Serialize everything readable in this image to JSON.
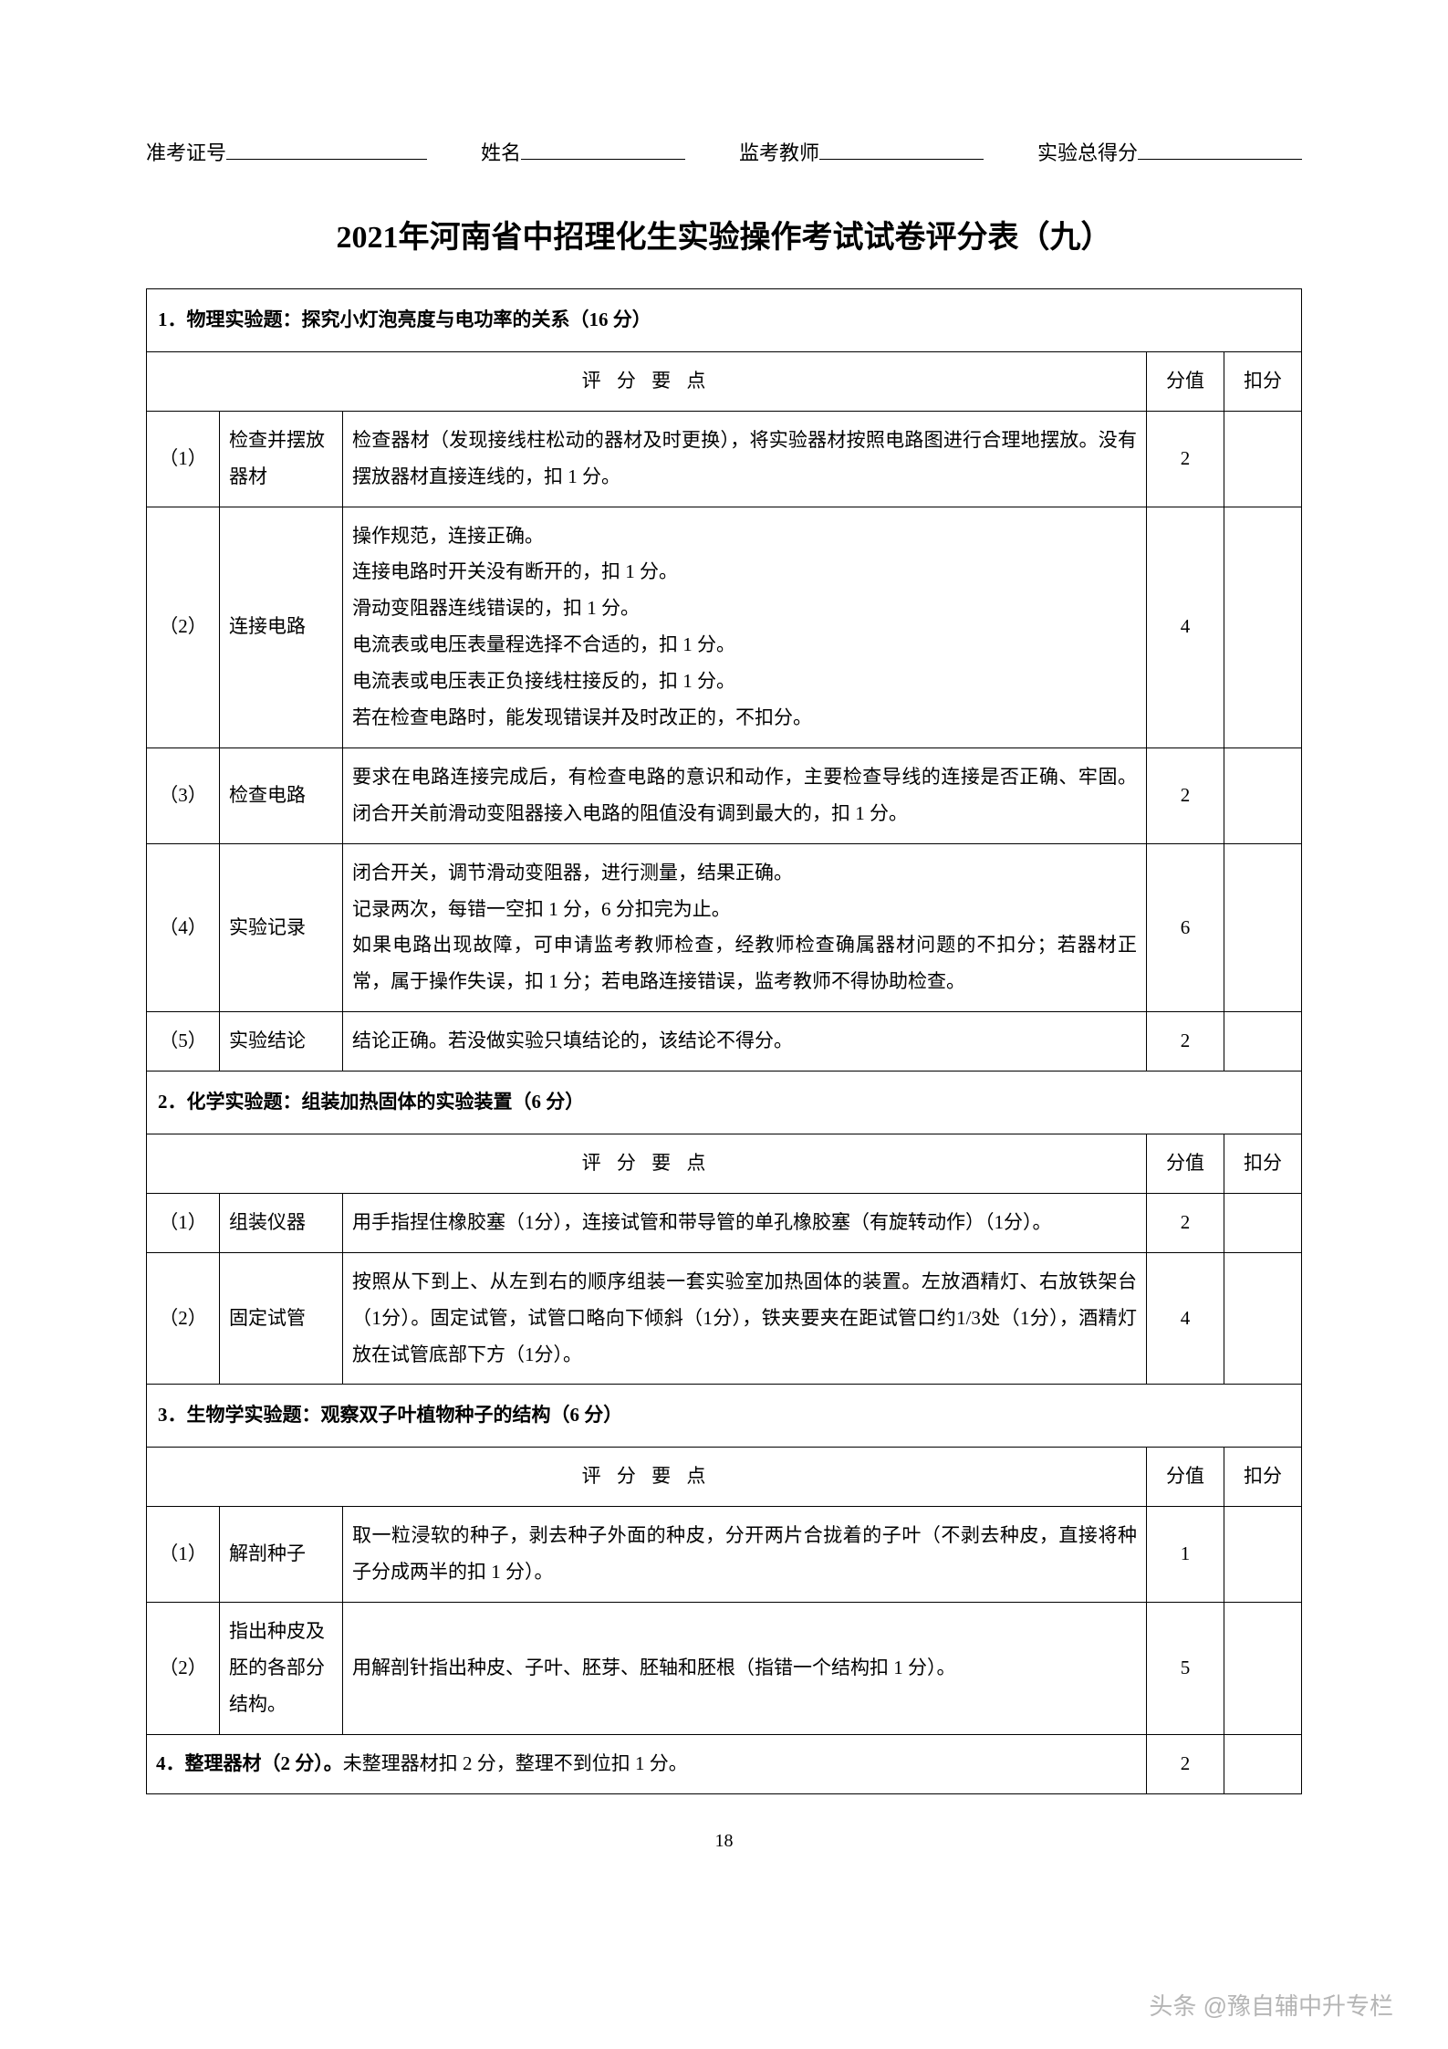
{
  "header": {
    "field1_label": "准考证号",
    "field2_label": "姓名",
    "field3_label": "监考教师",
    "field4_label": "实验总得分"
  },
  "title": "2021年河南省中招理化生实验操作考试试卷评分表（九）",
  "col_headers": {
    "criteria": "评 分 要 点",
    "score": "分值",
    "deduct": "扣分"
  },
  "section1": {
    "header": "1．物理实验题：探究小灯泡亮度与电功率的关系（16 分）",
    "rows": [
      {
        "num": "（1）",
        "name": "检查并摆放器材",
        "desc": "检查器材（发现接线柱松动的器材及时更换），将实验器材按照电路图进行合理地摆放。没有摆放器材直接连线的，扣 1 分。",
        "score": "2"
      },
      {
        "num": "（2）",
        "name": "连接电路",
        "desc": "操作规范，连接正确。\n连接电路时开关没有断开的，扣 1 分。\n滑动变阻器连线错误的，扣 1 分。\n电流表或电压表量程选择不合适的，扣 1 分。\n电流表或电压表正负接线柱接反的，扣 1 分。\n若在检查电路时，能发现错误并及时改正的，不扣分。",
        "score": "4"
      },
      {
        "num": "（3）",
        "name": "检查电路",
        "desc": "要求在电路连接完成后，有检查电路的意识和动作，主要检查导线的连接是否正确、牢固。闭合开关前滑动变阻器接入电路的阻值没有调到最大的，扣 1 分。",
        "score": "2"
      },
      {
        "num": "（4）",
        "name": "实验记录",
        "desc": "闭合开关，调节滑动变阻器，进行测量，结果正确。\n记录两次，每错一空扣 1 分，6 分扣完为止。\n如果电路出现故障，可申请监考教师检查，经教师检查确属器材问题的不扣分；若器材正常，属于操作失误，扣 1 分；若电路连接错误，监考教师不得协助检查。",
        "score": "6"
      },
      {
        "num": "（5）",
        "name": "实验结论",
        "desc": "结论正确。若没做实验只填结论的，该结论不得分。",
        "score": "2"
      }
    ]
  },
  "section2": {
    "header": "2．化学实验题：组装加热固体的实验装置（6 分）",
    "rows": [
      {
        "num": "（1）",
        "name": "组装仪器",
        "desc": "用手指捏住橡胶塞（1分），连接试管和带导管的单孔橡胶塞（有旋转动作）（1分）。",
        "score": "2"
      },
      {
        "num": "（2）",
        "name": "固定试管",
        "desc": "按照从下到上、从左到右的顺序组装一套实验室加热固体的装置。左放酒精灯、右放铁架台（1分）。固定试管，试管口略向下倾斜（1分），铁夹要夹在距试管口约1/3处（1分），酒精灯放在试管底部下方（1分）。",
        "score": "4"
      }
    ]
  },
  "section3": {
    "header": "3．生物学实验题：观察双子叶植物种子的结构（6 分）",
    "rows": [
      {
        "num": "（1）",
        "name": "解剖种子",
        "desc": "取一粒浸软的种子，剥去种子外面的种皮，分开两片合拢着的子叶（不剥去种皮，直接将种子分成两半的扣 1 分）。",
        "score": "1"
      },
      {
        "num": "（2）",
        "name": "指出种皮及胚的各部分结构。",
        "desc": "用解剖针指出种皮、子叶、胚芽、胚轴和胚根（指错一个结构扣 1 分）。",
        "score": "5"
      }
    ]
  },
  "section4": {
    "text": "4．整理器材（2 分）。",
    "text2": "未整理器材扣 2 分，整理不到位扣 1 分。",
    "score": "2"
  },
  "page_number": "18",
  "watermark": "头条 @豫自辅中升专栏",
  "layout": {
    "col_widths": {
      "num": "80",
      "name": "135",
      "desc": "auto",
      "score": "85",
      "deduct": "85"
    }
  }
}
